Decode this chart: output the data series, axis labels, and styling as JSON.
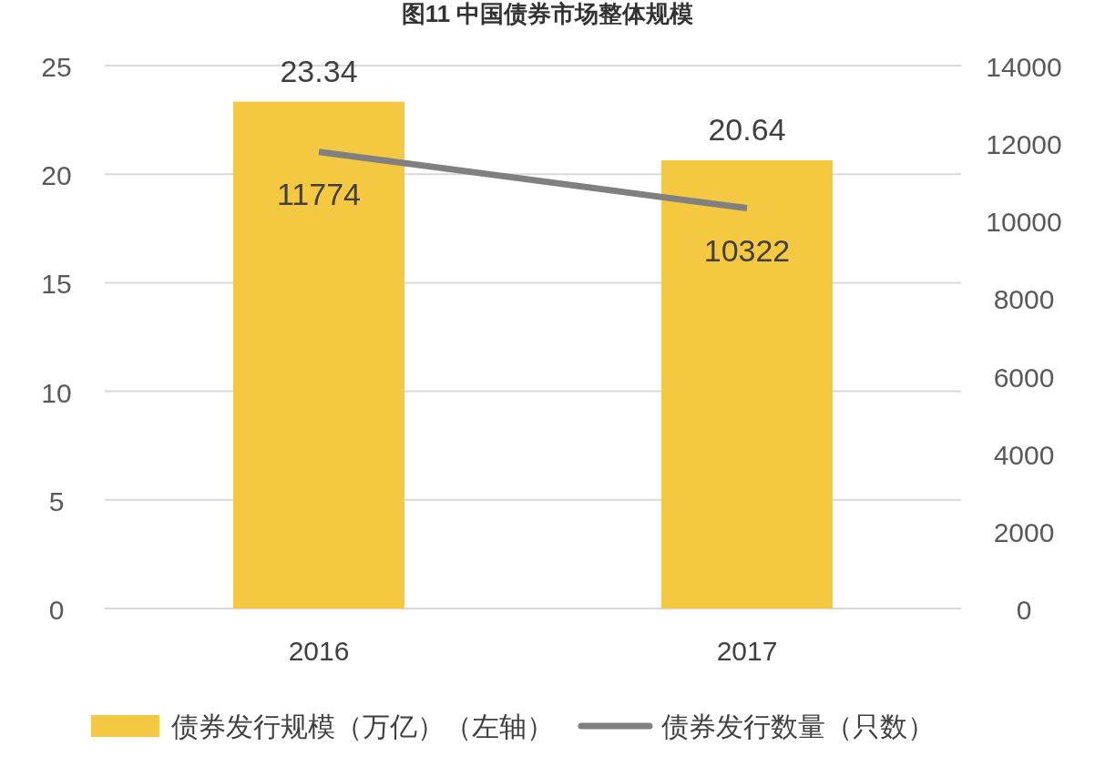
{
  "chart_data": {
    "type": "bar",
    "title": "图11 中国债券市场整体规模",
    "categories": [
      "2016",
      "2017"
    ],
    "series": [
      {
        "name": "债券发行规模（万亿）（左轴）",
        "color": "#f5c842",
        "values": [
          23.34,
          20.64
        ]
      },
      {
        "name": "债券发行数量（只数）",
        "type": "line",
        "axis": "y2",
        "color": "#808080",
        "values": [
          11774,
          10322
        ]
      }
    ],
    "ylim": [
      0,
      25
    ],
    "yticks": [
      0,
      5,
      10,
      15,
      20,
      25
    ],
    "y2lim": [
      0,
      14000
    ],
    "y2ticks": [
      0,
      2000,
      4000,
      6000,
      8000,
      10000,
      12000,
      14000
    ],
    "grid": "y",
    "legend": "bottom",
    "data_labels": true,
    "marker": "none"
  }
}
